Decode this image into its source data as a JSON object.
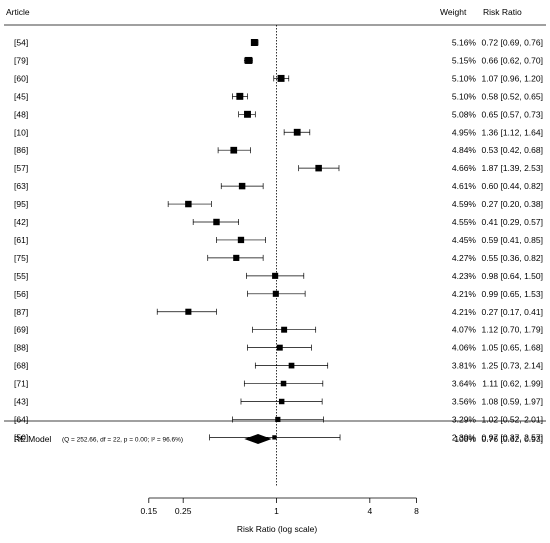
{
  "chart_data": {
    "type": "forest",
    "scale": "log",
    "headers": {
      "article": "Article",
      "weight": "Weight",
      "effect": "Risk Ratio"
    },
    "xlabel": "Risk Ratio (log scale)",
    "xticks": [
      0.15,
      0.25,
      1,
      4,
      8
    ],
    "xtick_labels": [
      "0.15",
      "0.25",
      "1",
      "4",
      "8"
    ],
    "reference_value": 1,
    "studies": [
      {
        "label": "[54]",
        "weight": "5.16%",
        "rr": 0.72,
        "lo": 0.69,
        "hi": 0.76,
        "text": "0.72 [0.69, 0.76]"
      },
      {
        "label": "[79]",
        "weight": "5.15%",
        "rr": 0.66,
        "lo": 0.62,
        "hi": 0.7,
        "text": "0.66 [0.62, 0.70]"
      },
      {
        "label": "[60]",
        "weight": "5.10%",
        "rr": 1.07,
        "lo": 0.96,
        "hi": 1.2,
        "text": "1.07 [0.96, 1.20]"
      },
      {
        "label": "[45]",
        "weight": "5.10%",
        "rr": 0.58,
        "lo": 0.52,
        "hi": 0.65,
        "text": "0.58 [0.52, 0.65]"
      },
      {
        "label": "[48]",
        "weight": "5.08%",
        "rr": 0.65,
        "lo": 0.57,
        "hi": 0.73,
        "text": "0.65 [0.57, 0.73]"
      },
      {
        "label": "[10]",
        "weight": "4.95%",
        "rr": 1.36,
        "lo": 1.12,
        "hi": 1.64,
        "text": "1.36 [1.12, 1.64]"
      },
      {
        "label": "[86]",
        "weight": "4.84%",
        "rr": 0.53,
        "lo": 0.42,
        "hi": 0.68,
        "text": "0.53 [0.42, 0.68]"
      },
      {
        "label": "[57]",
        "weight": "4.66%",
        "rr": 1.87,
        "lo": 1.39,
        "hi": 2.53,
        "text": "1.87 [1.39, 2.53]"
      },
      {
        "label": "[63]",
        "weight": "4.61%",
        "rr": 0.6,
        "lo": 0.44,
        "hi": 0.82,
        "text": "0.60 [0.44, 0.82]"
      },
      {
        "label": "[95]",
        "weight": "4.59%",
        "rr": 0.27,
        "lo": 0.2,
        "hi": 0.38,
        "text": "0.27 [0.20, 0.38]"
      },
      {
        "label": "[42]",
        "weight": "4.55%",
        "rr": 0.41,
        "lo": 0.29,
        "hi": 0.57,
        "text": "0.41 [0.29, 0.57]"
      },
      {
        "label": "[61]",
        "weight": "4.45%",
        "rr": 0.59,
        "lo": 0.41,
        "hi": 0.85,
        "text": "0.59 [0.41, 0.85]"
      },
      {
        "label": "[75]",
        "weight": "4.27%",
        "rr": 0.55,
        "lo": 0.36,
        "hi": 0.82,
        "text": "0.55 [0.36, 0.82]"
      },
      {
        "label": "[55]",
        "weight": "4.23%",
        "rr": 0.98,
        "lo": 0.64,
        "hi": 1.5,
        "text": "0.98 [0.64, 1.50]"
      },
      {
        "label": "[56]",
        "weight": "4.21%",
        "rr": 0.99,
        "lo": 0.65,
        "hi": 1.53,
        "text": "0.99 [0.65, 1.53]"
      },
      {
        "label": "[87]",
        "weight": "4.21%",
        "rr": 0.27,
        "lo": 0.17,
        "hi": 0.41,
        "text": "0.27 [0.17, 0.41]"
      },
      {
        "label": "[69]",
        "weight": "4.07%",
        "rr": 1.12,
        "lo": 0.7,
        "hi": 1.79,
        "text": "1.12 [0.70, 1.79]"
      },
      {
        "label": "[88]",
        "weight": "4.06%",
        "rr": 1.05,
        "lo": 0.65,
        "hi": 1.68,
        "text": "1.05 [0.65, 1.68]"
      },
      {
        "label": "[68]",
        "weight": "3.81%",
        "rr": 1.25,
        "lo": 0.73,
        "hi": 2.14,
        "text": "1.25 [0.73, 2.14]"
      },
      {
        "label": "[71]",
        "weight": "3.64%",
        "rr": 1.11,
        "lo": 0.62,
        "hi": 1.99,
        "text": "1.11 [0.62, 1.99]"
      },
      {
        "label": "[43]",
        "weight": "3.56%",
        "rr": 1.08,
        "lo": 0.59,
        "hi": 1.97,
        "text": "1.08 [0.59, 1.97]"
      },
      {
        "label": "[64]",
        "weight": "3.29%",
        "rr": 1.02,
        "lo": 0.52,
        "hi": 2.01,
        "text": "1.02 [0.52, 2.01]"
      },
      {
        "label": "[50]",
        "weight": "2.39%",
        "rr": 0.97,
        "lo": 0.37,
        "hi": 2.57,
        "text": "0.97 [0.37, 2.57]"
      }
    ],
    "summary": {
      "label": "RE Model",
      "stats": "(Q = 252.66, df = 22, p = 0.00; I² = 96.6%)",
      "weight": "100%",
      "rr": 0.76,
      "lo": 0.62,
      "hi": 0.93,
      "text": "0.76 [0.62, 0.93]"
    }
  }
}
